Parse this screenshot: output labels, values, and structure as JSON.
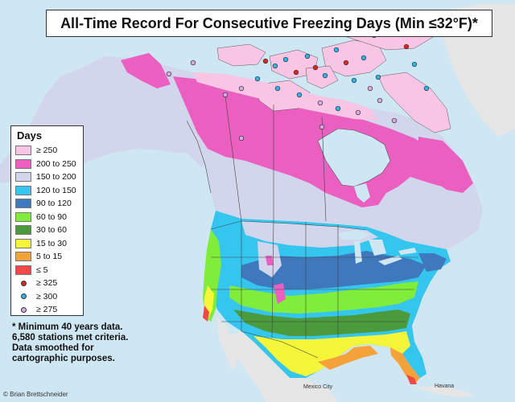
{
  "title": "All-Time Record For Consecutive Freezing Days (Min ≤32°F)*",
  "legend": {
    "title": "Days",
    "bins": [
      {
        "label": "≥ 250",
        "color": "#f9c5e4"
      },
      {
        "label": "200 to 250",
        "color": "#ea5fc0"
      },
      {
        "label": "150 to 200",
        "color": "#d2d6ec"
      },
      {
        "label": "120 to 150",
        "color": "#34c6ee"
      },
      {
        "label": "90 to 120",
        "color": "#3f78bd"
      },
      {
        "label": "60 to 90",
        "color": "#7fed3a"
      },
      {
        "label": "30 to 60",
        "color": "#4b9a3b"
      },
      {
        "label": "15 to 30",
        "color": "#f5f53a"
      },
      {
        "label": "5 to 15",
        "color": "#f6a23b"
      },
      {
        "label": "≤ 5",
        "color": "#f04747"
      }
    ],
    "stations": [
      {
        "label": "≥ 325",
        "color": "#e2241f"
      },
      {
        "label": "≥ 300",
        "color": "#2cb6e8"
      },
      {
        "label": "≥ 275",
        "color": "#d9a8e6"
      }
    ]
  },
  "note": "* Minimum 40 years data. 6,580 stations met criteria. Data smoothed for cartographic purposes.",
  "credit": "© Brian Brettschneider",
  "labels": {
    "mexico_city": "Mexico City",
    "havana": "Havana"
  }
}
